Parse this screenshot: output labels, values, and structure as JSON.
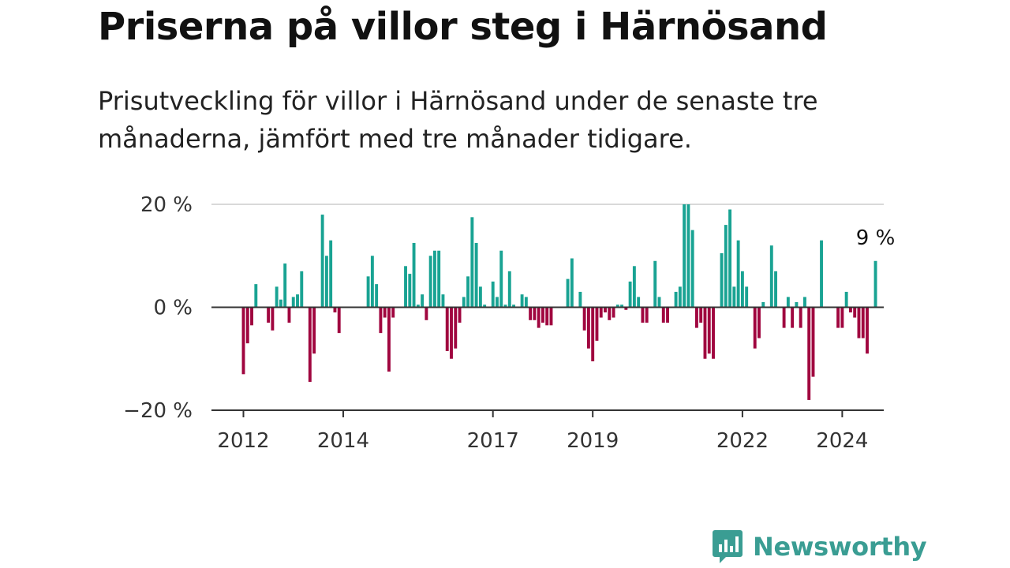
{
  "title": "Priserna på villor steg i Härnösand",
  "subtitle": "Prisutveckling för villor i Härnösand under de senaste tre månaderna, jämfört med tre månader tidigare.",
  "brand": {
    "name": "Newsworthy",
    "logo_icon": "bar-chart-speech-bubble-icon"
  },
  "colors": {
    "positive": "#19a393",
    "negative": "#a0063f",
    "zero_line": "#333333",
    "grid": "#d9d9d9",
    "brand": "#3a9d93"
  },
  "chart_data": {
    "type": "bar",
    "ylim": [
      -20,
      20
    ],
    "y_ticks": [
      20,
      0,
      -20
    ],
    "y_tick_labels": [
      "20 %",
      "0 %",
      "−20 %"
    ],
    "x_start": "2012-01",
    "x_tick_labels": [
      "2012",
      "2014",
      "2017",
      "2019",
      "2022",
      "2024"
    ],
    "x_tick_months": [
      "2012-01",
      "2014-01",
      "2017-01",
      "2019-01",
      "2022-01",
      "2024-01"
    ],
    "end_label": "9 %",
    "grid": true,
    "legend": "none",
    "values": [
      -13,
      -7,
      -3.5,
      4.5,
      0,
      0,
      -3,
      -4.5,
      4,
      1.5,
      8.5,
      -3,
      2,
      2.5,
      7,
      0,
      -14.5,
      -9,
      0,
      18,
      10,
      13,
      -1,
      -5,
      0,
      0,
      0,
      0,
      0,
      0,
      6,
      10,
      4.5,
      -5,
      -2,
      -12.5,
      -2,
      0,
      0,
      8,
      6.5,
      12.5,
      0.5,
      2.5,
      -2.5,
      10,
      11,
      11,
      2.5,
      -8.5,
      -10,
      -8,
      -3,
      2,
      6,
      17.5,
      12.5,
      4,
      0.5,
      0,
      5,
      2,
      11,
      0.5,
      7,
      0.5,
      0,
      2.5,
      2,
      -2.5,
      -2.5,
      -4,
      -3,
      -3.5,
      -3.5,
      0,
      0,
      0,
      5.5,
      9.5,
      0,
      3,
      -4.5,
      -8,
      -10.5,
      -6.5,
      -2,
      -1,
      -2.5,
      -2,
      0.5,
      0.5,
      -0.5,
      5,
      8,
      2,
      -3,
      -3,
      0,
      9,
      2,
      -3,
      -3,
      0,
      3,
      4,
      20,
      20,
      15,
      -4,
      -3,
      -10,
      -9,
      -10,
      0,
      10.5,
      16,
      19,
      4,
      13,
      7,
      4,
      0,
      -8,
      -6,
      1,
      0,
      12,
      7,
      0,
      -4,
      2,
      -4,
      1,
      -4,
      2,
      -18,
      -13.5,
      0,
      13,
      0,
      0,
      0,
      -4,
      -4,
      3,
      -1,
      -2,
      -6,
      -6,
      -9,
      0,
      9
    ]
  }
}
